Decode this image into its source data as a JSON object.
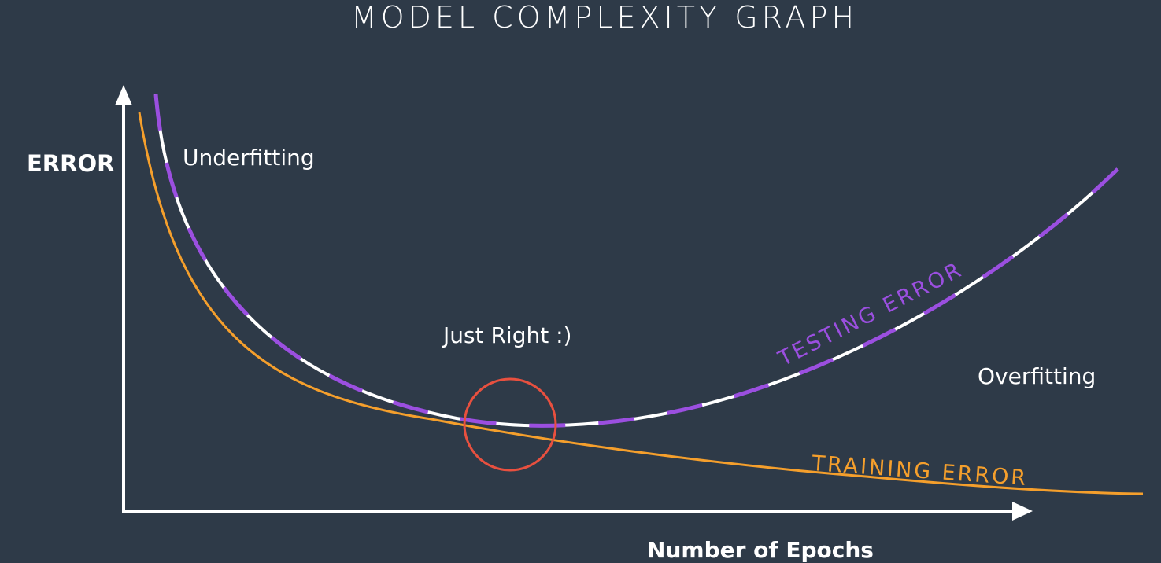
{
  "title": "MODEL COMPLEXITY GRAPH",
  "axes": {
    "y_label": "ERROR",
    "x_label": "Number of Epochs"
  },
  "regions": {
    "underfitting": "Underfitting",
    "just_right": "Just Right :)",
    "overfitting": "Overfitting"
  },
  "curves": {
    "testing": {
      "label": "TESTING ERROR",
      "color": "#9b4fe0",
      "dash_color": "#ffffff"
    },
    "training": {
      "label": "TRAINING ERROR",
      "color": "#f59f2c"
    }
  },
  "marker": {
    "color": "#e8503f"
  },
  "colors": {
    "background": "#2e3a48",
    "axis": "#ffffff",
    "text": "#ffffff"
  }
}
